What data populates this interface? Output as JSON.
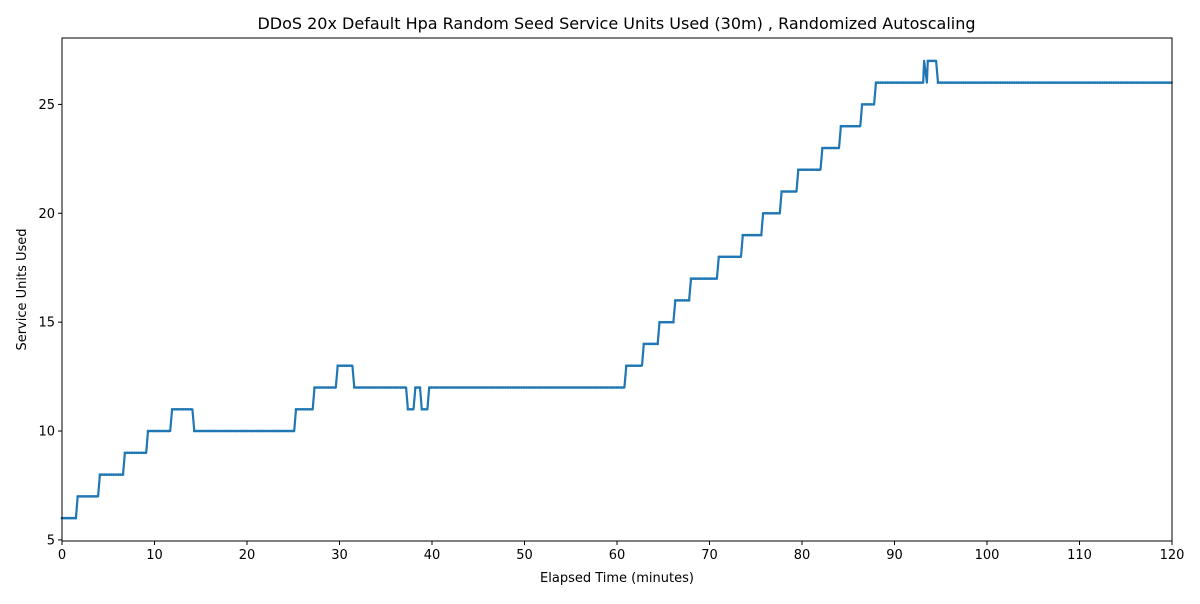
{
  "chart_data": {
    "type": "line",
    "title": "DDoS 20x Default Hpa Random Seed Service Units Used (30m) , Randomized Autoscaling",
    "xlabel": "Elapsed Time (minutes)",
    "ylabel": "Service Units Used",
    "xlim": [
      0,
      120
    ],
    "ylim": [
      4.95,
      28.05
    ],
    "xticks": [
      0,
      10,
      20,
      30,
      40,
      50,
      60,
      70,
      80,
      90,
      100,
      110,
      120
    ],
    "yticks": [
      5,
      10,
      15,
      20,
      25
    ],
    "grid": false,
    "line_color": "#1f77b4",
    "series": [
      {
        "x": [
          0,
          1.5,
          1.7,
          3.9,
          4.1,
          6.6,
          6.8,
          9.1,
          9.3,
          11.7,
          11.9,
          14.1,
          14.3,
          25.1,
          25.3,
          27.1,
          27.3,
          29.6,
          29.8,
          31.4,
          31.6,
          37.2,
          37.4,
          38.0,
          38.2,
          38.7,
          38.9,
          39.5,
          39.7,
          60.8,
          61.0,
          62.7,
          62.9,
          64.4,
          64.6,
          66.1,
          66.3,
          67.8,
          68.0,
          70.8,
          71.0,
          73.4,
          73.6,
          75.6,
          75.8,
          77.6,
          77.8,
          79.4,
          79.6,
          82.0,
          82.2,
          84.0,
          84.2,
          86.3,
          86.5,
          87.8,
          88.0,
          93.1,
          93.2,
          93.5,
          93.6,
          94.5,
          94.7,
          120
        ],
        "y": [
          6,
          6,
          7,
          7,
          8,
          8,
          9,
          9,
          10,
          10,
          11,
          11,
          10,
          10,
          11,
          11,
          12,
          12,
          13,
          13,
          12,
          12,
          11,
          11,
          12,
          12,
          11,
          11,
          12,
          12,
          13,
          13,
          14,
          14,
          15,
          15,
          16,
          16,
          17,
          17,
          18,
          18,
          19,
          19,
          20,
          20,
          21,
          21,
          22,
          22,
          23,
          23,
          24,
          24,
          25,
          25,
          26,
          26,
          27,
          26,
          27,
          27,
          26,
          26
        ]
      }
    ]
  }
}
